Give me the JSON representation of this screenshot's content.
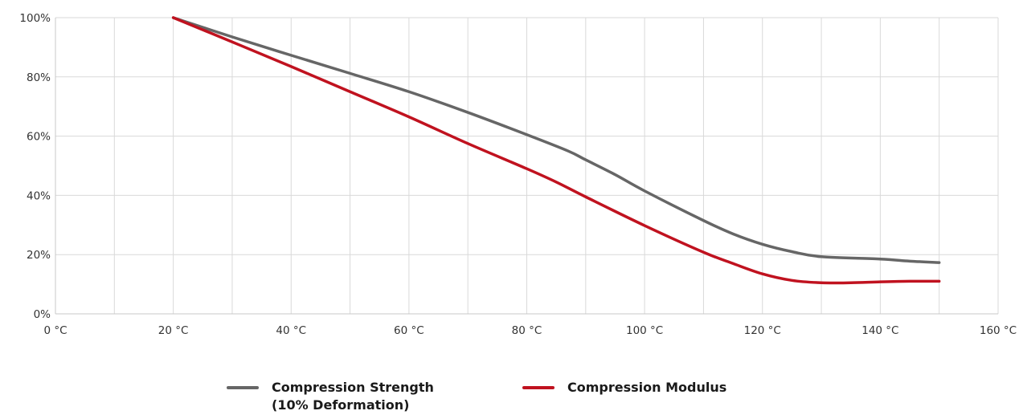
{
  "chart_data": {
    "type": "line",
    "xlim": [
      0,
      160
    ],
    "ylim": [
      0,
      100
    ],
    "x_ticks": [
      0,
      10,
      20,
      30,
      40,
      50,
      60,
      70,
      80,
      90,
      100,
      110,
      120,
      130,
      140,
      150,
      160
    ],
    "x_tick_labels": [
      "0 °C",
      "20 °C",
      "40 °C",
      "60 °C",
      "80 °C",
      "100 °C",
      "120 °C",
      "140 °C",
      "160 °C"
    ],
    "y_ticks": [
      0,
      20,
      40,
      60,
      80,
      100
    ],
    "y_tick_labels": [
      "0%",
      "20%",
      "40%",
      "60%",
      "80%",
      "100%"
    ],
    "grid": true,
    "legend_position": "bottom",
    "series": [
      {
        "name": "Compression Strength\n(10% Deformation)",
        "color": "#666666",
        "x": [
          20,
          30,
          40,
          50,
          60,
          70,
          80,
          87,
          90,
          95,
          100,
          110,
          115,
          120,
          125,
          130,
          140,
          145,
          150
        ],
        "y": [
          100,
          93.5,
          87.3,
          81.2,
          75,
          68,
          60.5,
          55,
          52,
          47,
          41.5,
          31.5,
          27,
          23.5,
          21,
          19.3,
          18.5,
          17.8,
          17.3
        ]
      },
      {
        "name": "Compression Modulus",
        "color": "#c0121f",
        "x": [
          20,
          30,
          40,
          50,
          60,
          70,
          80,
          85,
          90,
          100,
          110,
          115,
          120,
          125,
          130,
          135,
          140,
          145,
          150
        ],
        "y": [
          100,
          91.8,
          83.5,
          75,
          66.5,
          57.5,
          49,
          44.5,
          39.5,
          29.8,
          20.8,
          17,
          13.5,
          11.3,
          10.5,
          10.5,
          10.8,
          11,
          11
        ]
      }
    ]
  }
}
